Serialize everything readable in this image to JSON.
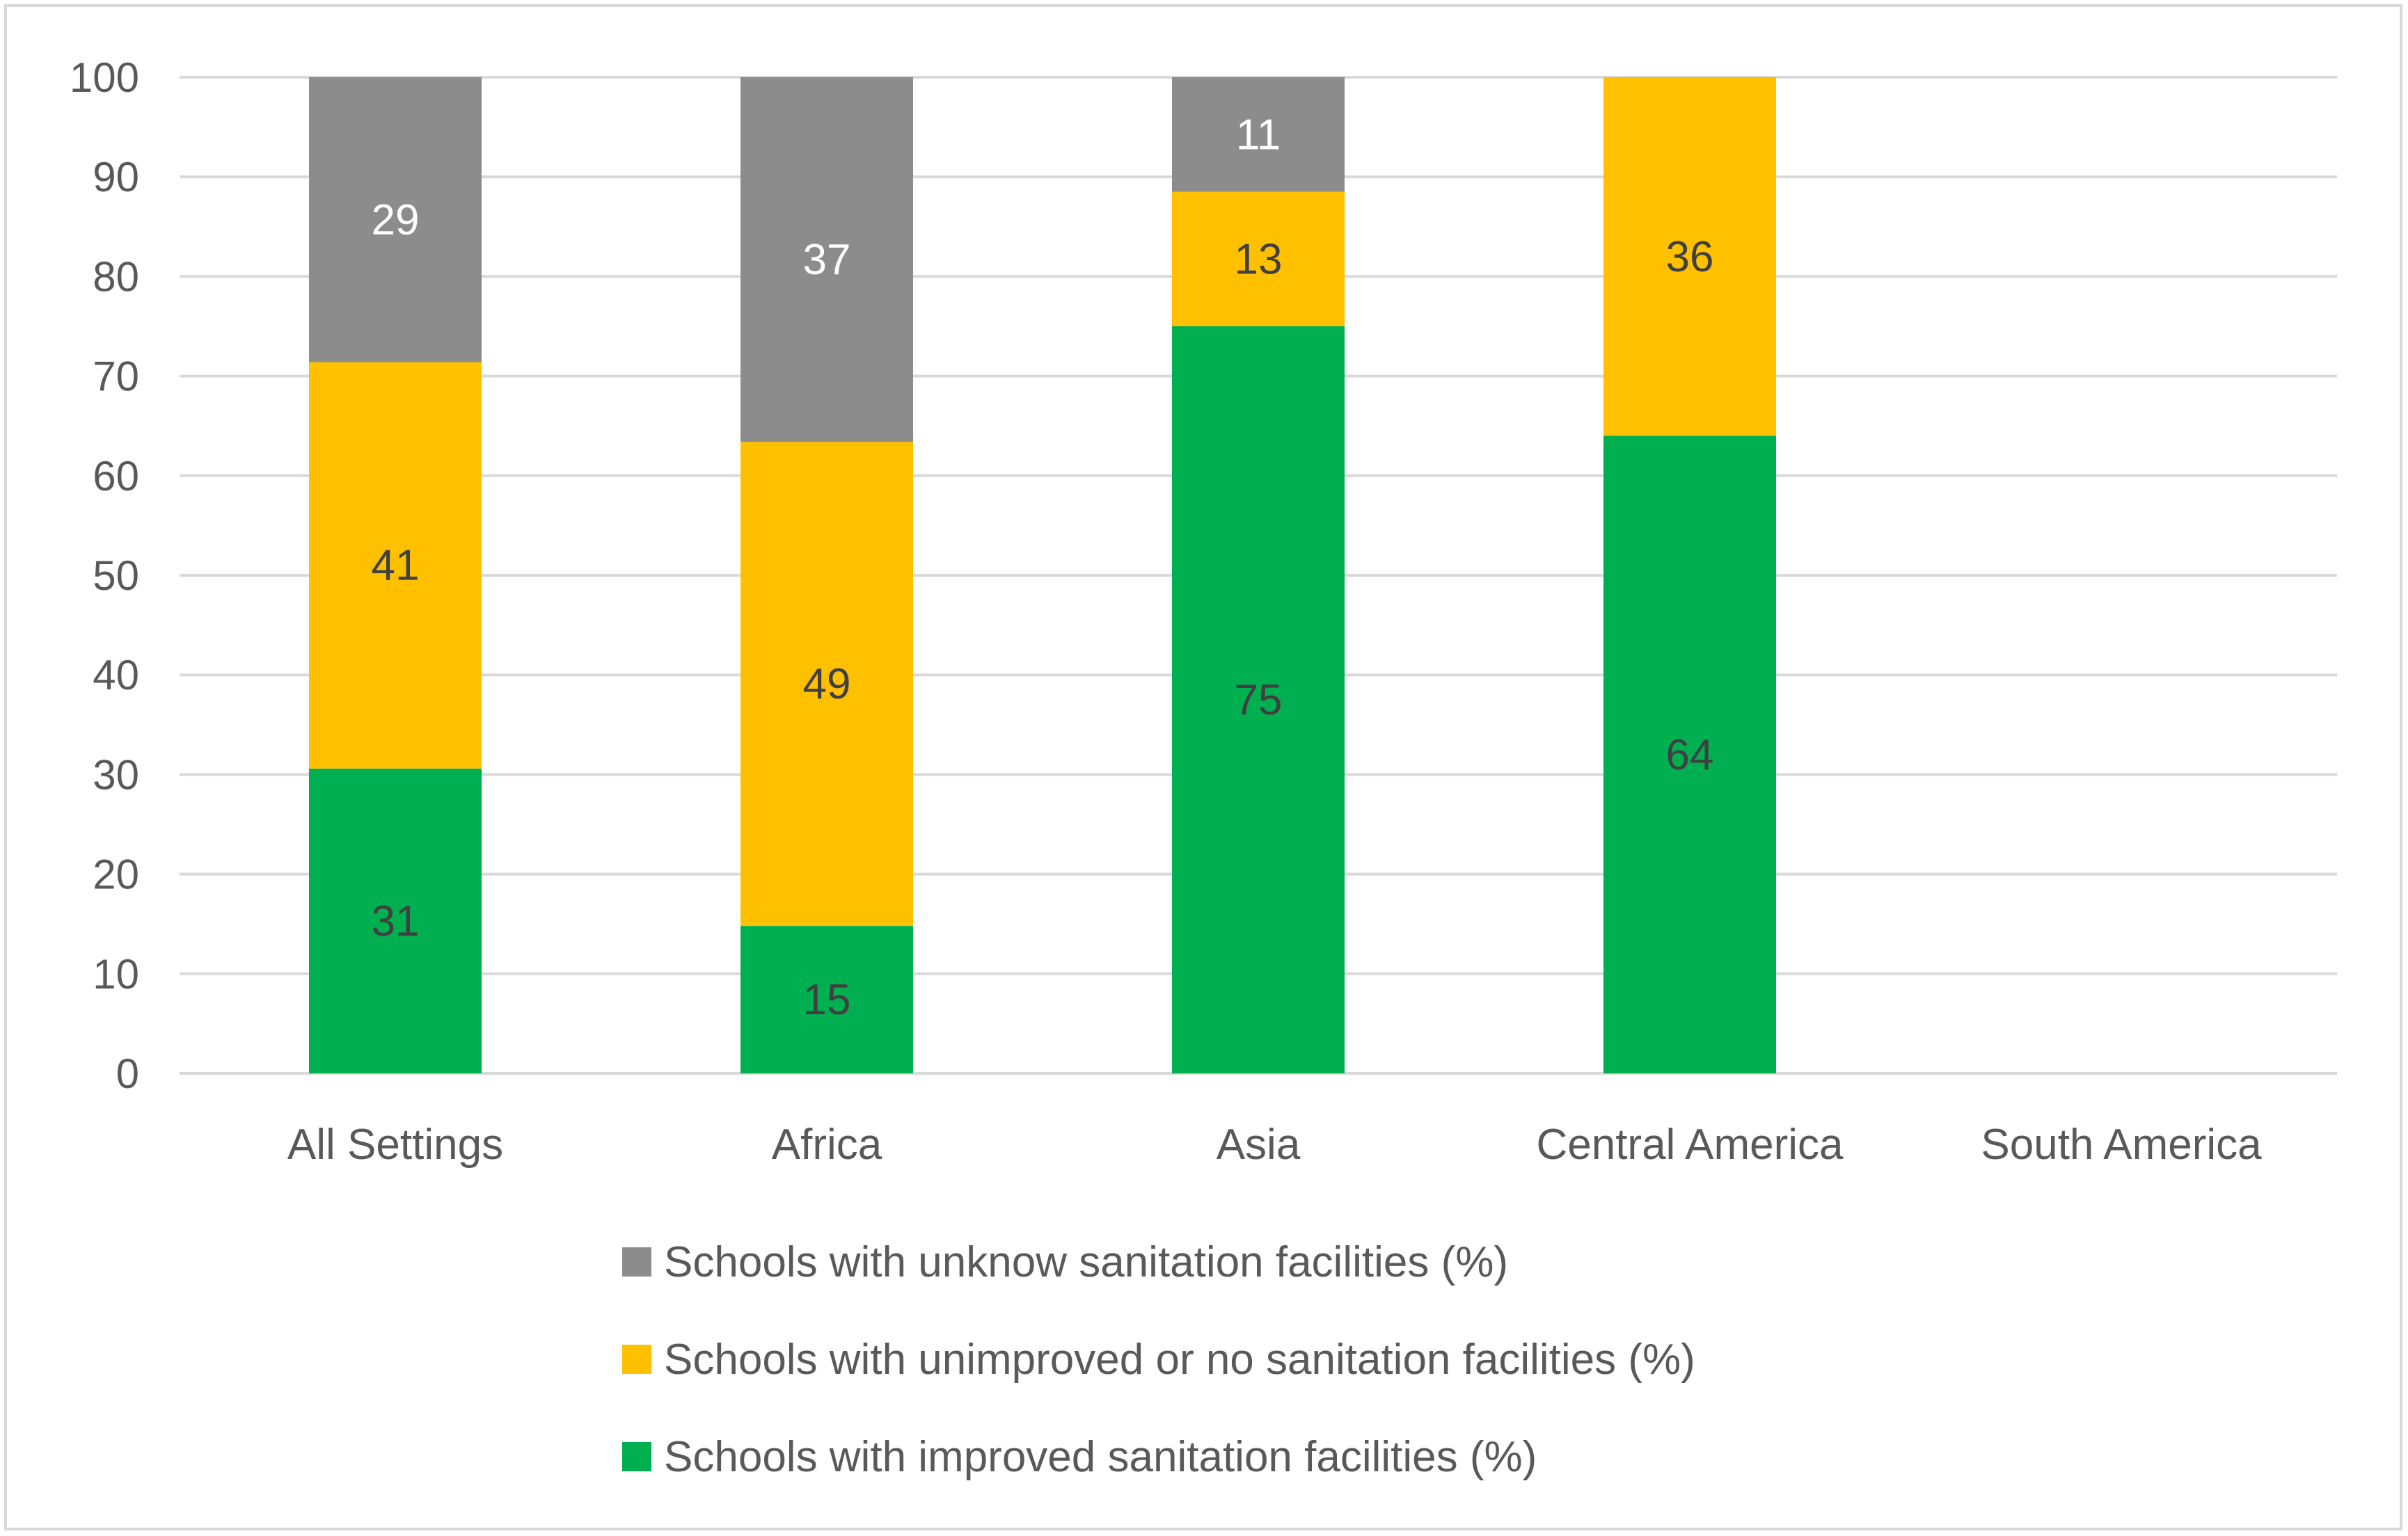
{
  "chart_data": {
    "type": "bar",
    "stacked": true,
    "title": "",
    "xlabel": "",
    "ylabel": "",
    "ylim": [
      0,
      100
    ],
    "yticks": [
      0,
      10,
      20,
      30,
      40,
      50,
      60,
      70,
      80,
      90,
      100
    ],
    "grid": true,
    "legend_position": "bottom",
    "categories": [
      "All Settings",
      "Africa",
      "Asia",
      "Central America",
      "South America"
    ],
    "series": [
      {
        "name": "Schools with improved sanitation facilities (%)",
        "color": "#00b050",
        "label_color": "#404040",
        "values": [
          30.6,
          14.8,
          75.0,
          64.0,
          null
        ],
        "labels": [
          "31",
          "15",
          "75",
          "64",
          ""
        ]
      },
      {
        "name": "Schools with unimproved or no sanitation facilities (%)",
        "color": "#ffc000",
        "label_color": "#404040",
        "values": [
          40.8,
          48.6,
          13.5,
          36.0,
          null
        ],
        "labels": [
          "41",
          "49",
          "13",
          "36",
          ""
        ]
      },
      {
        "name": "Schools with unknow sanitation facilities (%)",
        "color": "#8c8c8c",
        "label_color": "#ffffff",
        "values": [
          28.6,
          36.6,
          11.5,
          0,
          null
        ],
        "labels": [
          "29",
          "37",
          "11",
          "",
          ""
        ]
      }
    ],
    "legend_order": [
      2,
      1,
      0
    ]
  }
}
